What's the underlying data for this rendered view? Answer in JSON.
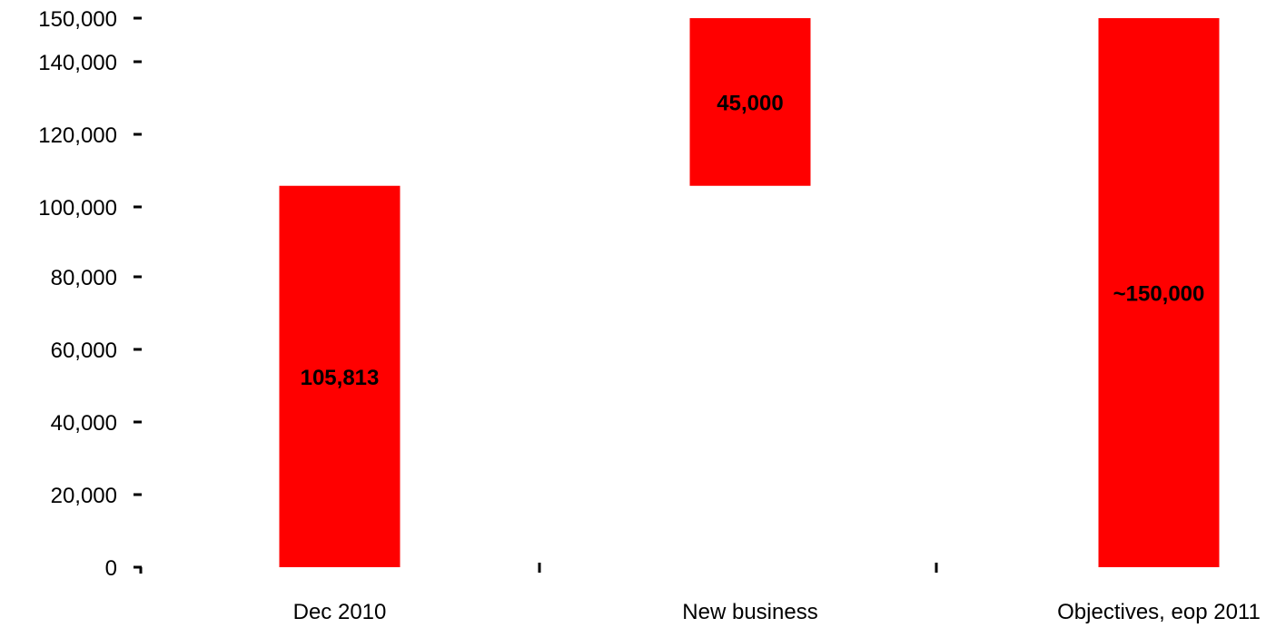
{
  "chart_data": {
    "type": "bar",
    "subtype": "waterfall",
    "title": "",
    "xlabel": "",
    "ylabel": "",
    "ylim": [
      0,
      150000
    ],
    "grid": false,
    "legend": "none",
    "y_ticks": [
      {
        "value": 0,
        "label": "0"
      },
      {
        "value": 20000,
        "label": "20,000"
      },
      {
        "value": 40000,
        "label": "40,000"
      },
      {
        "value": 60000,
        "label": "60,000"
      },
      {
        "value": 80000,
        "label": "80,000"
      },
      {
        "value": 100000,
        "label": "100,000"
      },
      {
        "value": 120000,
        "label": "120,000"
      },
      {
        "value": 140000,
        "label": "140,000"
      },
      {
        "value": 150000,
        "label": "150,000"
      }
    ],
    "categories": [
      "Dec 2010",
      "New business",
      "Objectives, eop 2011"
    ],
    "bars": [
      {
        "category": "Dec 2010",
        "base": 0,
        "value": 105813,
        "label": "105,813"
      },
      {
        "category": "New business",
        "base": 105813,
        "value": 45000,
        "label": "45,000"
      },
      {
        "category": "Objectives, eop 2011",
        "base": 0,
        "value": 150000,
        "label": "~150,000"
      }
    ],
    "colors": {
      "bar": "#ff0000",
      "axis": "#000000",
      "text": "#000000"
    }
  }
}
